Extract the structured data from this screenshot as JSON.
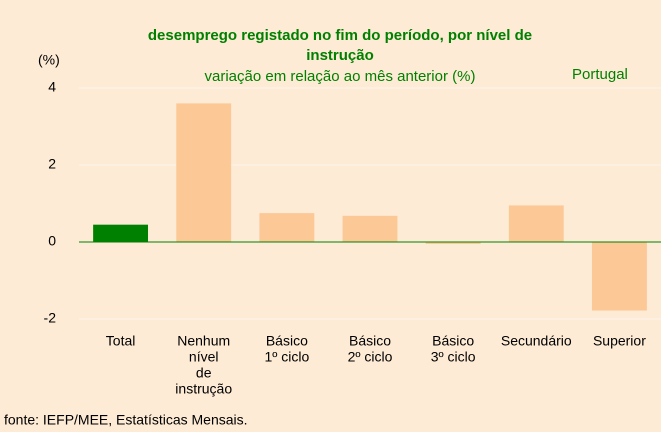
{
  "chart_data": {
    "type": "bar",
    "title": [
      "desemprego registado no fim do período,  por nível de",
      "instrução"
    ],
    "subtitle": "variação em relação ao mês anterior (%)",
    "y_label": "(%)",
    "annotation": "Portugal",
    "source": "fonte: IEFP/MEE, Estatísticas Mensais.",
    "categories": [
      [
        "Total"
      ],
      [
        "Nenhum",
        "nível",
        "de",
        "instrução"
      ],
      [
        "Básico",
        "1º ciclo"
      ],
      [
        "Básico",
        "2º ciclo"
      ],
      [
        "Básico",
        "3º ciclo"
      ],
      [
        "Secundário"
      ],
      [
        "Superior"
      ]
    ],
    "values": [
      0.45,
      3.6,
      0.75,
      0.68,
      -0.05,
      0.95,
      -1.78
    ],
    "colors": [
      "#008000",
      "#fcc896",
      "#fcc896",
      "#fcc896",
      "#fcc896",
      "#fcc896",
      "#fcc896"
    ],
    "ylim": [
      -2.5,
      4.5
    ],
    "yticks": [
      -2,
      0,
      2,
      4
    ],
    "grid": true
  }
}
